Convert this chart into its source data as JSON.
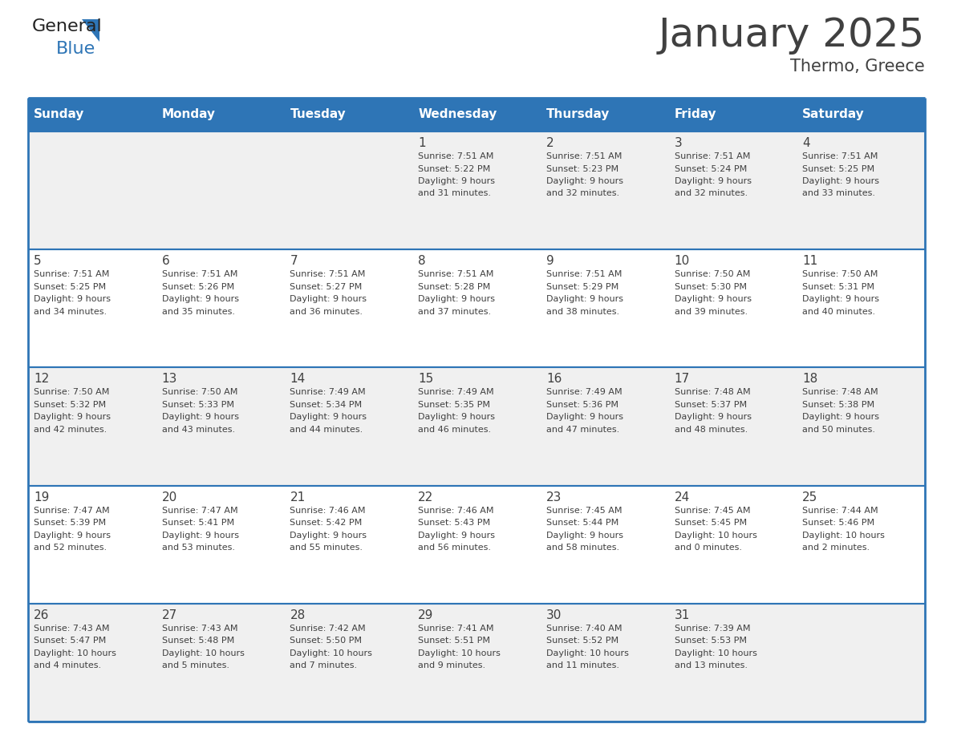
{
  "title": "January 2025",
  "subtitle": "Thermo, Greece",
  "days_of_week": [
    "Sunday",
    "Monday",
    "Tuesday",
    "Wednesday",
    "Thursday",
    "Friday",
    "Saturday"
  ],
  "header_bg": "#2E75B6",
  "header_text": "#FFFFFF",
  "cell_bg_light": "#F0F0F0",
  "cell_bg_white": "#FFFFFF",
  "border_color": "#2E75B6",
  "text_color": "#404040",
  "calendar": [
    [
      null,
      null,
      null,
      {
        "day": 1,
        "sunrise": "7:51 AM",
        "sunset": "5:22 PM",
        "daylight": "9 hours and 31 minutes."
      },
      {
        "day": 2,
        "sunrise": "7:51 AM",
        "sunset": "5:23 PM",
        "daylight": "9 hours and 32 minutes."
      },
      {
        "day": 3,
        "sunrise": "7:51 AM",
        "sunset": "5:24 PM",
        "daylight": "9 hours and 32 minutes."
      },
      {
        "day": 4,
        "sunrise": "7:51 AM",
        "sunset": "5:25 PM",
        "daylight": "9 hours and 33 minutes."
      }
    ],
    [
      {
        "day": 5,
        "sunrise": "7:51 AM",
        "sunset": "5:25 PM",
        "daylight": "9 hours and 34 minutes."
      },
      {
        "day": 6,
        "sunrise": "7:51 AM",
        "sunset": "5:26 PM",
        "daylight": "9 hours and 35 minutes."
      },
      {
        "day": 7,
        "sunrise": "7:51 AM",
        "sunset": "5:27 PM",
        "daylight": "9 hours and 36 minutes."
      },
      {
        "day": 8,
        "sunrise": "7:51 AM",
        "sunset": "5:28 PM",
        "daylight": "9 hours and 37 minutes."
      },
      {
        "day": 9,
        "sunrise": "7:51 AM",
        "sunset": "5:29 PM",
        "daylight": "9 hours and 38 minutes."
      },
      {
        "day": 10,
        "sunrise": "7:50 AM",
        "sunset": "5:30 PM",
        "daylight": "9 hours and 39 minutes."
      },
      {
        "day": 11,
        "sunrise": "7:50 AM",
        "sunset": "5:31 PM",
        "daylight": "9 hours and 40 minutes."
      }
    ],
    [
      {
        "day": 12,
        "sunrise": "7:50 AM",
        "sunset": "5:32 PM",
        "daylight": "9 hours and 42 minutes."
      },
      {
        "day": 13,
        "sunrise": "7:50 AM",
        "sunset": "5:33 PM",
        "daylight": "9 hours and 43 minutes."
      },
      {
        "day": 14,
        "sunrise": "7:49 AM",
        "sunset": "5:34 PM",
        "daylight": "9 hours and 44 minutes."
      },
      {
        "day": 15,
        "sunrise": "7:49 AM",
        "sunset": "5:35 PM",
        "daylight": "9 hours and 46 minutes."
      },
      {
        "day": 16,
        "sunrise": "7:49 AM",
        "sunset": "5:36 PM",
        "daylight": "9 hours and 47 minutes."
      },
      {
        "day": 17,
        "sunrise": "7:48 AM",
        "sunset": "5:37 PM",
        "daylight": "9 hours and 48 minutes."
      },
      {
        "day": 18,
        "sunrise": "7:48 AM",
        "sunset": "5:38 PM",
        "daylight": "9 hours and 50 minutes."
      }
    ],
    [
      {
        "day": 19,
        "sunrise": "7:47 AM",
        "sunset": "5:39 PM",
        "daylight": "9 hours and 52 minutes."
      },
      {
        "day": 20,
        "sunrise": "7:47 AM",
        "sunset": "5:41 PM",
        "daylight": "9 hours and 53 minutes."
      },
      {
        "day": 21,
        "sunrise": "7:46 AM",
        "sunset": "5:42 PM",
        "daylight": "9 hours and 55 minutes."
      },
      {
        "day": 22,
        "sunrise": "7:46 AM",
        "sunset": "5:43 PM",
        "daylight": "9 hours and 56 minutes."
      },
      {
        "day": 23,
        "sunrise": "7:45 AM",
        "sunset": "5:44 PM",
        "daylight": "9 hours and 58 minutes."
      },
      {
        "day": 24,
        "sunrise": "7:45 AM",
        "sunset": "5:45 PM",
        "daylight": "10 hours and 0 minutes."
      },
      {
        "day": 25,
        "sunrise": "7:44 AM",
        "sunset": "5:46 PM",
        "daylight": "10 hours and 2 minutes."
      }
    ],
    [
      {
        "day": 26,
        "sunrise": "7:43 AM",
        "sunset": "5:47 PM",
        "daylight": "10 hours and 4 minutes."
      },
      {
        "day": 27,
        "sunrise": "7:43 AM",
        "sunset": "5:48 PM",
        "daylight": "10 hours and 5 minutes."
      },
      {
        "day": 28,
        "sunrise": "7:42 AM",
        "sunset": "5:50 PM",
        "daylight": "10 hours and 7 minutes."
      },
      {
        "day": 29,
        "sunrise": "7:41 AM",
        "sunset": "5:51 PM",
        "daylight": "10 hours and 9 minutes."
      },
      {
        "day": 30,
        "sunrise": "7:40 AM",
        "sunset": "5:52 PM",
        "daylight": "10 hours and 11 minutes."
      },
      {
        "day": 31,
        "sunrise": "7:39 AM",
        "sunset": "5:53 PM",
        "daylight": "10 hours and 13 minutes."
      },
      null
    ]
  ],
  "logo_general_color": "#222222",
  "logo_blue_color": "#2E75B6",
  "fig_width": 11.88,
  "fig_height": 9.18,
  "title_fontsize": 36,
  "subtitle_fontsize": 15,
  "dow_fontsize": 11,
  "day_num_fontsize": 11,
  "cell_text_fontsize": 8
}
